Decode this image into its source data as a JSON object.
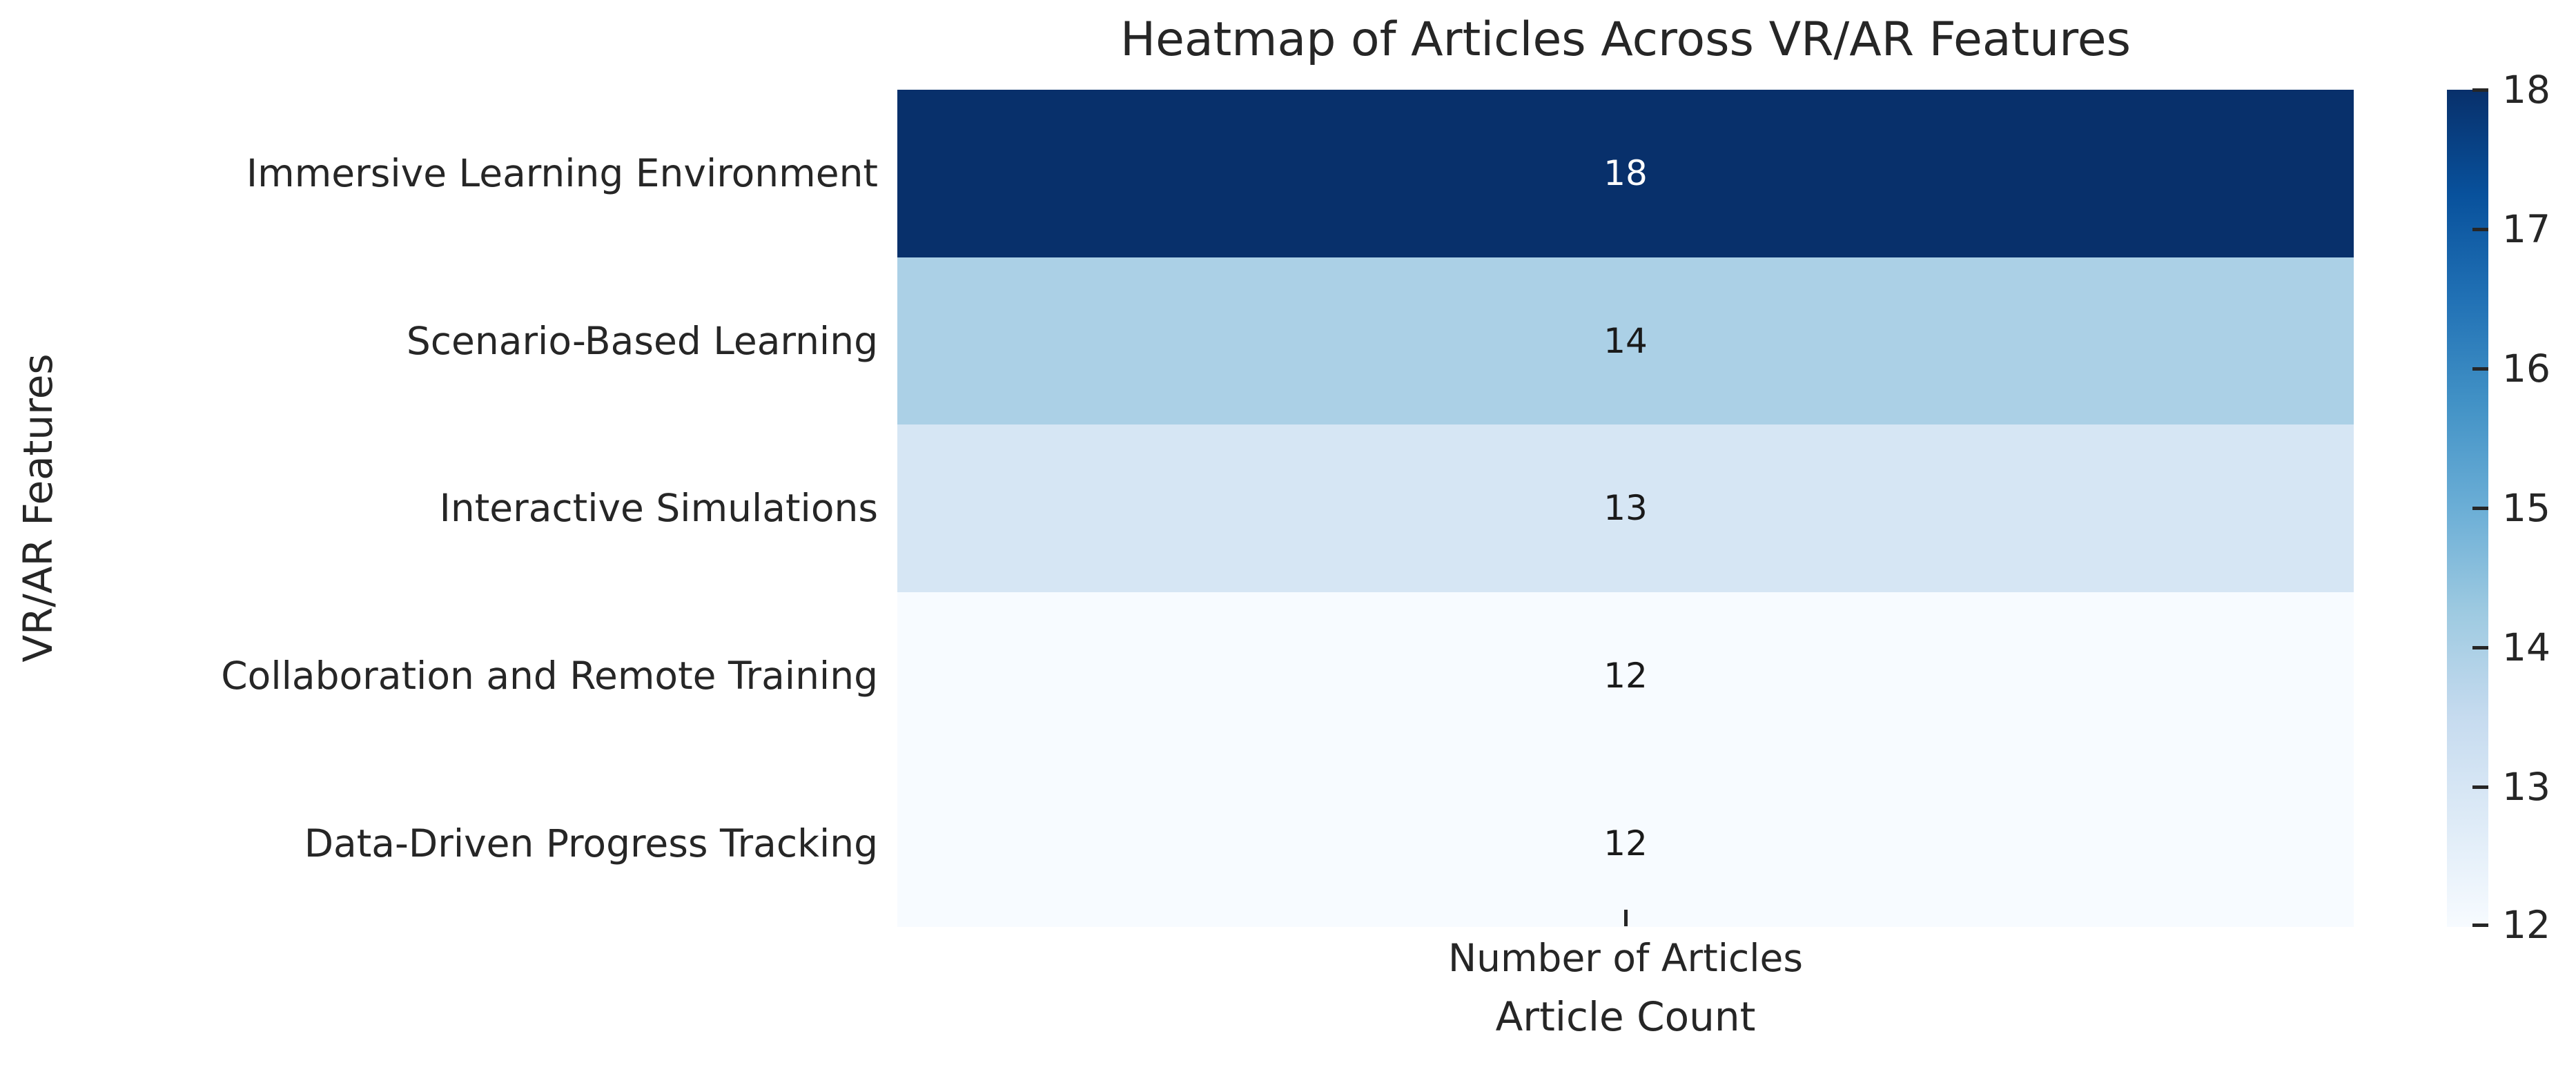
{
  "chart_data": {
    "type": "heatmap",
    "title": "Heatmap of Articles Across VR/AR Features",
    "xlabel": "Article Count",
    "ylabel": "VR/AR Features",
    "x_tick_label": "Number of Articles",
    "categories": [
      "Immersive Learning Environment",
      "Scenario-Based Learning",
      "Interactive Simulations",
      "Collaboration and Remote Training",
      "Data-Driven Progress Tracking"
    ],
    "values": [
      18,
      14,
      13,
      12,
      12
    ],
    "cell_colors": [
      "#08306b",
      "#abd0e6",
      "#d6e6f4",
      "#f7fbff",
      "#f7fbff"
    ],
    "cell_text_colors": [
      "#ffffff",
      "#1a1a1a",
      "#1a1a1a",
      "#1a1a1a",
      "#1a1a1a"
    ],
    "grid": false,
    "colorbar": {
      "ticks": [
        "18",
        "17",
        "16",
        "15",
        "14",
        "13",
        "12"
      ],
      "vmin": 12,
      "vmax": 18,
      "position": "right",
      "gradient_top_to_bottom": [
        "#08306b",
        "#08519c",
        "#2171b5",
        "#4292c6",
        "#6baed6",
        "#9ecae1",
        "#c6dbef",
        "#deebf7",
        "#f7fbff"
      ]
    }
  }
}
